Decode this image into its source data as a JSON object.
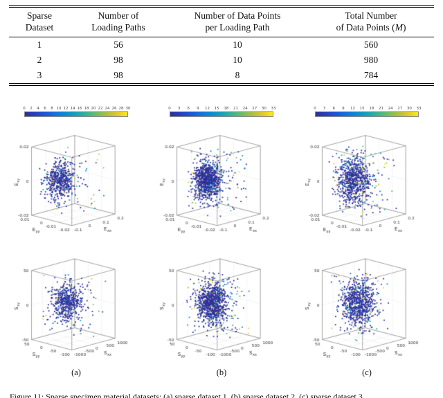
{
  "table": {
    "headers": [
      {
        "line1": "Sparse",
        "line2": "Dataset"
      },
      {
        "line1": "Number of",
        "line2": "Loading Paths"
      },
      {
        "line1": "Number of Data Points",
        "line2": "per Loading Path"
      },
      {
        "line1": "Total Number",
        "line2_pre": "of Data Points (",
        "line2_var": "M",
        "line2_post": ")"
      }
    ],
    "rows": [
      [
        "1",
        "56",
        "10",
        "560"
      ],
      [
        "2",
        "98",
        "10",
        "980"
      ],
      [
        "3",
        "98",
        "8",
        "784"
      ]
    ]
  },
  "figure": {
    "subcaptions": [
      "(a)",
      "(b)",
      "(c)"
    ],
    "caption": "Figure 11: Sparse specimen material datasets: (a) sparse dataset 1, (b) sparse dataset 2, (c) sparse dataset 3."
  },
  "colors": {
    "point_blue": "#302f96",
    "rule_black": "#000000"
  },
  "chart_data": [
    {
      "id": "plot-a-strain",
      "type": "scatter",
      "projection": "3d",
      "colormap": "parula",
      "n": 560,
      "seed": 7,
      "spread": 0.12,
      "center": [
        0.34,
        0.66,
        0.5
      ],
      "xlabel": "E",
      "xlabel_sub": "xx",
      "ylabel": "E",
      "ylabel_sub": "yy",
      "zlabel": "E",
      "zlabel_sub": "xy",
      "xticks": [
        "-0.1",
        "0",
        "0.1",
        "0.2"
      ],
      "yticks": [
        "0.01",
        "0",
        "-0.01",
        "-0.02"
      ],
      "zticks": [
        "-0.02",
        "0",
        "0.02"
      ],
      "colorbar": {
        "min": 0,
        "max": 30,
        "ticks": [
          0,
          2,
          4,
          6,
          8,
          10,
          12,
          14,
          16,
          18,
          20,
          22,
          24,
          26,
          28,
          30
        ]
      }
    },
    {
      "id": "plot-a-stress",
      "type": "scatter",
      "projection": "3d",
      "colormap": "parula",
      "n": 560,
      "seed": 17,
      "spread": 0.13,
      "center": [
        0.5,
        0.66,
        0.5
      ],
      "xlabel": "S",
      "xlabel_sub": "xx",
      "ylabel": "S",
      "ylabel_sub": "yy",
      "zlabel": "S",
      "zlabel_sub": "xy",
      "xticks": [
        "-1000",
        "-500",
        "0",
        "500",
        "1000"
      ],
      "yticks": [
        "50",
        "0",
        "-50",
        "-100"
      ],
      "zticks": [
        "-50",
        "0",
        "50"
      ]
    },
    {
      "id": "plot-b-strain",
      "type": "scatter",
      "projection": "3d",
      "colormap": "parula",
      "n": 980,
      "seed": 27,
      "spread": 0.115,
      "center": [
        0.36,
        0.64,
        0.5
      ],
      "xlabel": "E",
      "xlabel_sub": "xx",
      "ylabel": "E",
      "ylabel_sub": "yy",
      "zlabel": "E",
      "zlabel_sub": "xy",
      "xticks": [
        "-0.1",
        "0",
        "0.1",
        "0.2"
      ],
      "yticks": [
        "0.01",
        "0",
        "-0.01",
        "-0.02"
      ],
      "zticks": [
        "-0.02",
        "0",
        "0.02"
      ],
      "colorbar": {
        "min": 0,
        "max": 33,
        "ticks": [
          0,
          3,
          6,
          9,
          12,
          15,
          18,
          21,
          24,
          27,
          30,
          33
        ]
      }
    },
    {
      "id": "plot-b-stress",
      "type": "scatter",
      "projection": "3d",
      "colormap": "parula",
      "n": 980,
      "seed": 37,
      "spread": 0.125,
      "center": [
        0.5,
        0.66,
        0.5
      ],
      "xlabel": "S",
      "xlabel_sub": "xx",
      "ylabel": "S",
      "ylabel_sub": "yy",
      "zlabel": "S",
      "zlabel_sub": "xy",
      "xticks": [
        "-1000",
        "-500",
        "0",
        "500",
        "1000"
      ],
      "yticks": [
        "50",
        "0",
        "-50",
        "-100"
      ],
      "zticks": [
        "-50",
        "0",
        "50"
      ]
    },
    {
      "id": "plot-c-strain",
      "type": "scatter",
      "projection": "3d",
      "colormap": "parula",
      "n": 784,
      "seed": 47,
      "spread": 0.14,
      "center": [
        0.38,
        0.62,
        0.5
      ],
      "xlabel": "E",
      "xlabel_sub": "xx",
      "ylabel": "E",
      "ylabel_sub": "yy",
      "zlabel": "E",
      "zlabel_sub": "xy",
      "xticks": [
        "-0.1",
        "0",
        "0.1",
        "0.2"
      ],
      "yticks": [
        "0.01",
        "0",
        "-0.01",
        "-0.02"
      ],
      "zticks": [
        "-0.02",
        "0",
        "0.02"
      ],
      "colorbar": {
        "min": 0,
        "max": 33,
        "ticks": [
          0,
          3,
          6,
          9,
          12,
          15,
          18,
          21,
          24,
          27,
          30,
          33
        ]
      }
    },
    {
      "id": "plot-c-stress",
      "type": "scatter",
      "projection": "3d",
      "colormap": "parula",
      "n": 784,
      "seed": 57,
      "spread": 0.14,
      "center": [
        0.5,
        0.64,
        0.5
      ],
      "xlabel": "S",
      "xlabel_sub": "xx",
      "ylabel": "S",
      "ylabel_sub": "yy",
      "zlabel": "S",
      "zlabel_sub": "xy",
      "xticks": [
        "-1000",
        "-500",
        "0",
        "500",
        "1000"
      ],
      "yticks": [
        "50",
        "0",
        "-50",
        "-100"
      ],
      "zticks": [
        "-50",
        "0",
        "50"
      ]
    }
  ]
}
